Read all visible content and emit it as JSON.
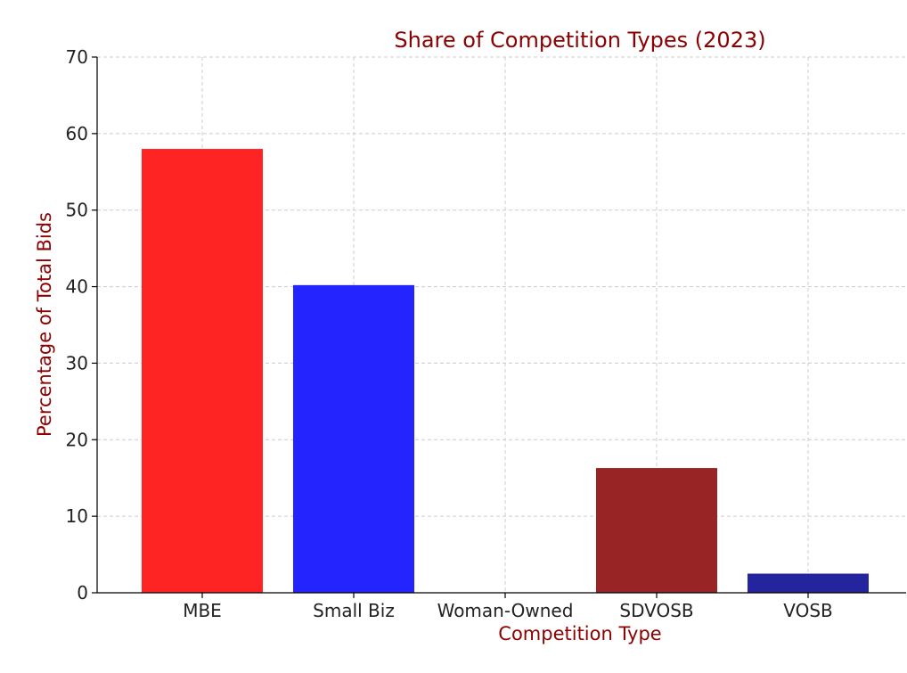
{
  "chart_data": {
    "type": "bar",
    "title": "Share of Competition Types (2023)",
    "xlabel": "Competition Type",
    "ylabel": "Percentage of Total Bids",
    "categories": [
      "MBE",
      "Small Biz",
      "Woman-Owned",
      "SDVOSB",
      "VOSB"
    ],
    "values": [
      58.0,
      40.2,
      0,
      16.3,
      2.5
    ],
    "colors": [
      "#ff2424",
      "#2424ff",
      "#ffffff",
      "#992426",
      "#24249e"
    ],
    "ylim": [
      0,
      70
    ],
    "yticks": [
      0,
      10,
      20,
      30,
      40,
      50,
      60,
      70
    ],
    "grid": true,
    "title_color": "#8b0000",
    "label_color": "#8b0000"
  }
}
